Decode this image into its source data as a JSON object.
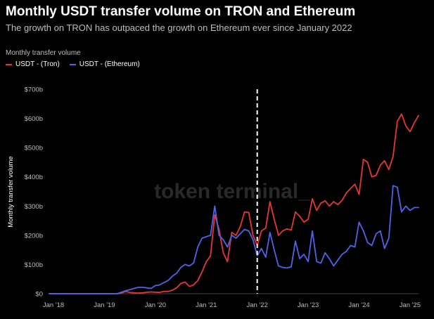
{
  "title": "Monthly USDT transfer volume on TRON and Ethereum",
  "subtitle": "The growth on TRON has outpaced the growth on Ethereum ever since January 2022",
  "legend_caption": "Monthly transfer volume",
  "watermark": "token terminal_",
  "colors": {
    "tron": "#e63535",
    "ethereum": "#4f63ea",
    "background": "#000000",
    "marker": "#ffffff"
  },
  "chart_data": {
    "type": "line",
    "ylabel": "Monthly transfer volume",
    "ylim": [
      0,
      700
    ],
    "y_ticks": [
      {
        "value": 0,
        "label": "$0"
      },
      {
        "value": 100,
        "label": "$100b"
      },
      {
        "value": 200,
        "label": "$200b"
      },
      {
        "value": 300,
        "label": "$300b"
      },
      {
        "value": 400,
        "label": "$400b"
      },
      {
        "value": 500,
        "label": "$500b"
      },
      {
        "value": 600,
        "label": "$600b"
      },
      {
        "value": 700,
        "label": "$700b"
      }
    ],
    "x_ticks": [
      {
        "value": "2018-01",
        "label": "Jan '18"
      },
      {
        "value": "2019-01",
        "label": "Jan '19"
      },
      {
        "value": "2020-01",
        "label": "Jan '20"
      },
      {
        "value": "2021-01",
        "label": "Jan '21"
      },
      {
        "value": "2022-01",
        "label": "Jan '22"
      },
      {
        "value": "2023-01",
        "label": "Jan '23"
      },
      {
        "value": "2024-01",
        "label": "Jan '24"
      },
      {
        "value": "2025-01",
        "label": "Jan '25"
      }
    ],
    "xlim": [
      "2017-12",
      "2025-03"
    ],
    "marker": {
      "x": "2022-01",
      "style": "dashed"
    },
    "x": [
      "2017-12",
      "2018-01",
      "2018-02",
      "2018-03",
      "2018-04",
      "2018-05",
      "2018-06",
      "2018-07",
      "2018-08",
      "2018-09",
      "2018-10",
      "2018-11",
      "2018-12",
      "2019-01",
      "2019-02",
      "2019-03",
      "2019-04",
      "2019-05",
      "2019-06",
      "2019-07",
      "2019-08",
      "2019-09",
      "2019-10",
      "2019-11",
      "2019-12",
      "2020-01",
      "2020-02",
      "2020-03",
      "2020-04",
      "2020-05",
      "2020-06",
      "2020-07",
      "2020-08",
      "2020-09",
      "2020-10",
      "2020-11",
      "2020-12",
      "2021-01",
      "2021-02",
      "2021-03",
      "2021-04",
      "2021-05",
      "2021-06",
      "2021-07",
      "2021-08",
      "2021-09",
      "2021-10",
      "2021-11",
      "2021-12",
      "2022-01",
      "2022-02",
      "2022-03",
      "2022-04",
      "2022-05",
      "2022-06",
      "2022-07",
      "2022-08",
      "2022-09",
      "2022-10",
      "2022-11",
      "2022-12",
      "2023-01",
      "2023-02",
      "2023-03",
      "2023-04",
      "2023-05",
      "2023-06",
      "2023-07",
      "2023-08",
      "2023-09",
      "2023-10",
      "2023-11",
      "2023-12",
      "2024-01",
      "2024-02",
      "2024-03",
      "2024-04",
      "2024-05",
      "2024-06",
      "2024-07",
      "2024-08",
      "2024-09",
      "2024-10",
      "2024-11",
      "2024-12",
      "2025-01",
      "2025-02",
      "2025-03"
    ],
    "series": [
      {
        "name": "USDT - (Tron)",
        "color": "#e63535",
        "values": [
          0,
          0,
          0,
          0,
          0,
          0,
          0,
          0,
          0,
          0,
          0,
          0,
          0,
          0,
          0,
          0,
          0,
          2,
          8,
          4,
          3,
          2,
          3,
          5,
          6,
          5,
          4,
          8,
          8,
          12,
          20,
          35,
          40,
          25,
          30,
          45,
          75,
          110,
          130,
          270,
          220,
          140,
          110,
          210,
          200,
          230,
          280,
          278,
          200,
          165,
          215,
          225,
          315,
          255,
          200,
          215,
          222,
          218,
          280,
          265,
          245,
          255,
          325,
          285,
          310,
          318,
          300,
          315,
          305,
          320,
          345,
          360,
          375,
          340,
          460,
          450,
          400,
          405,
          440,
          455,
          425,
          470,
          590,
          615,
          575,
          555,
          585,
          610
        ]
      },
      {
        "name": "USDT - (Ethereum)",
        "color": "#4f63ea",
        "values": [
          0,
          0,
          0,
          0,
          0,
          0,
          0,
          0,
          0,
          0,
          0,
          0,
          0,
          0,
          0,
          0,
          0,
          5,
          10,
          14,
          18,
          22,
          22,
          20,
          18,
          28,
          30,
          38,
          45,
          60,
          70,
          90,
          100,
          95,
          105,
          160,
          190,
          195,
          200,
          300,
          200,
          185,
          160,
          200,
          190,
          205,
          220,
          215,
          185,
          130,
          155,
          125,
          210,
          150,
          95,
          90,
          88,
          92,
          180,
          120,
          135,
          110,
          215,
          110,
          105,
          140,
          120,
          95,
          115,
          135,
          145,
          165,
          160,
          245,
          215,
          175,
          165,
          205,
          215,
          155,
          190,
          370,
          365,
          280,
          300,
          285,
          295,
          295
        ]
      }
    ]
  }
}
